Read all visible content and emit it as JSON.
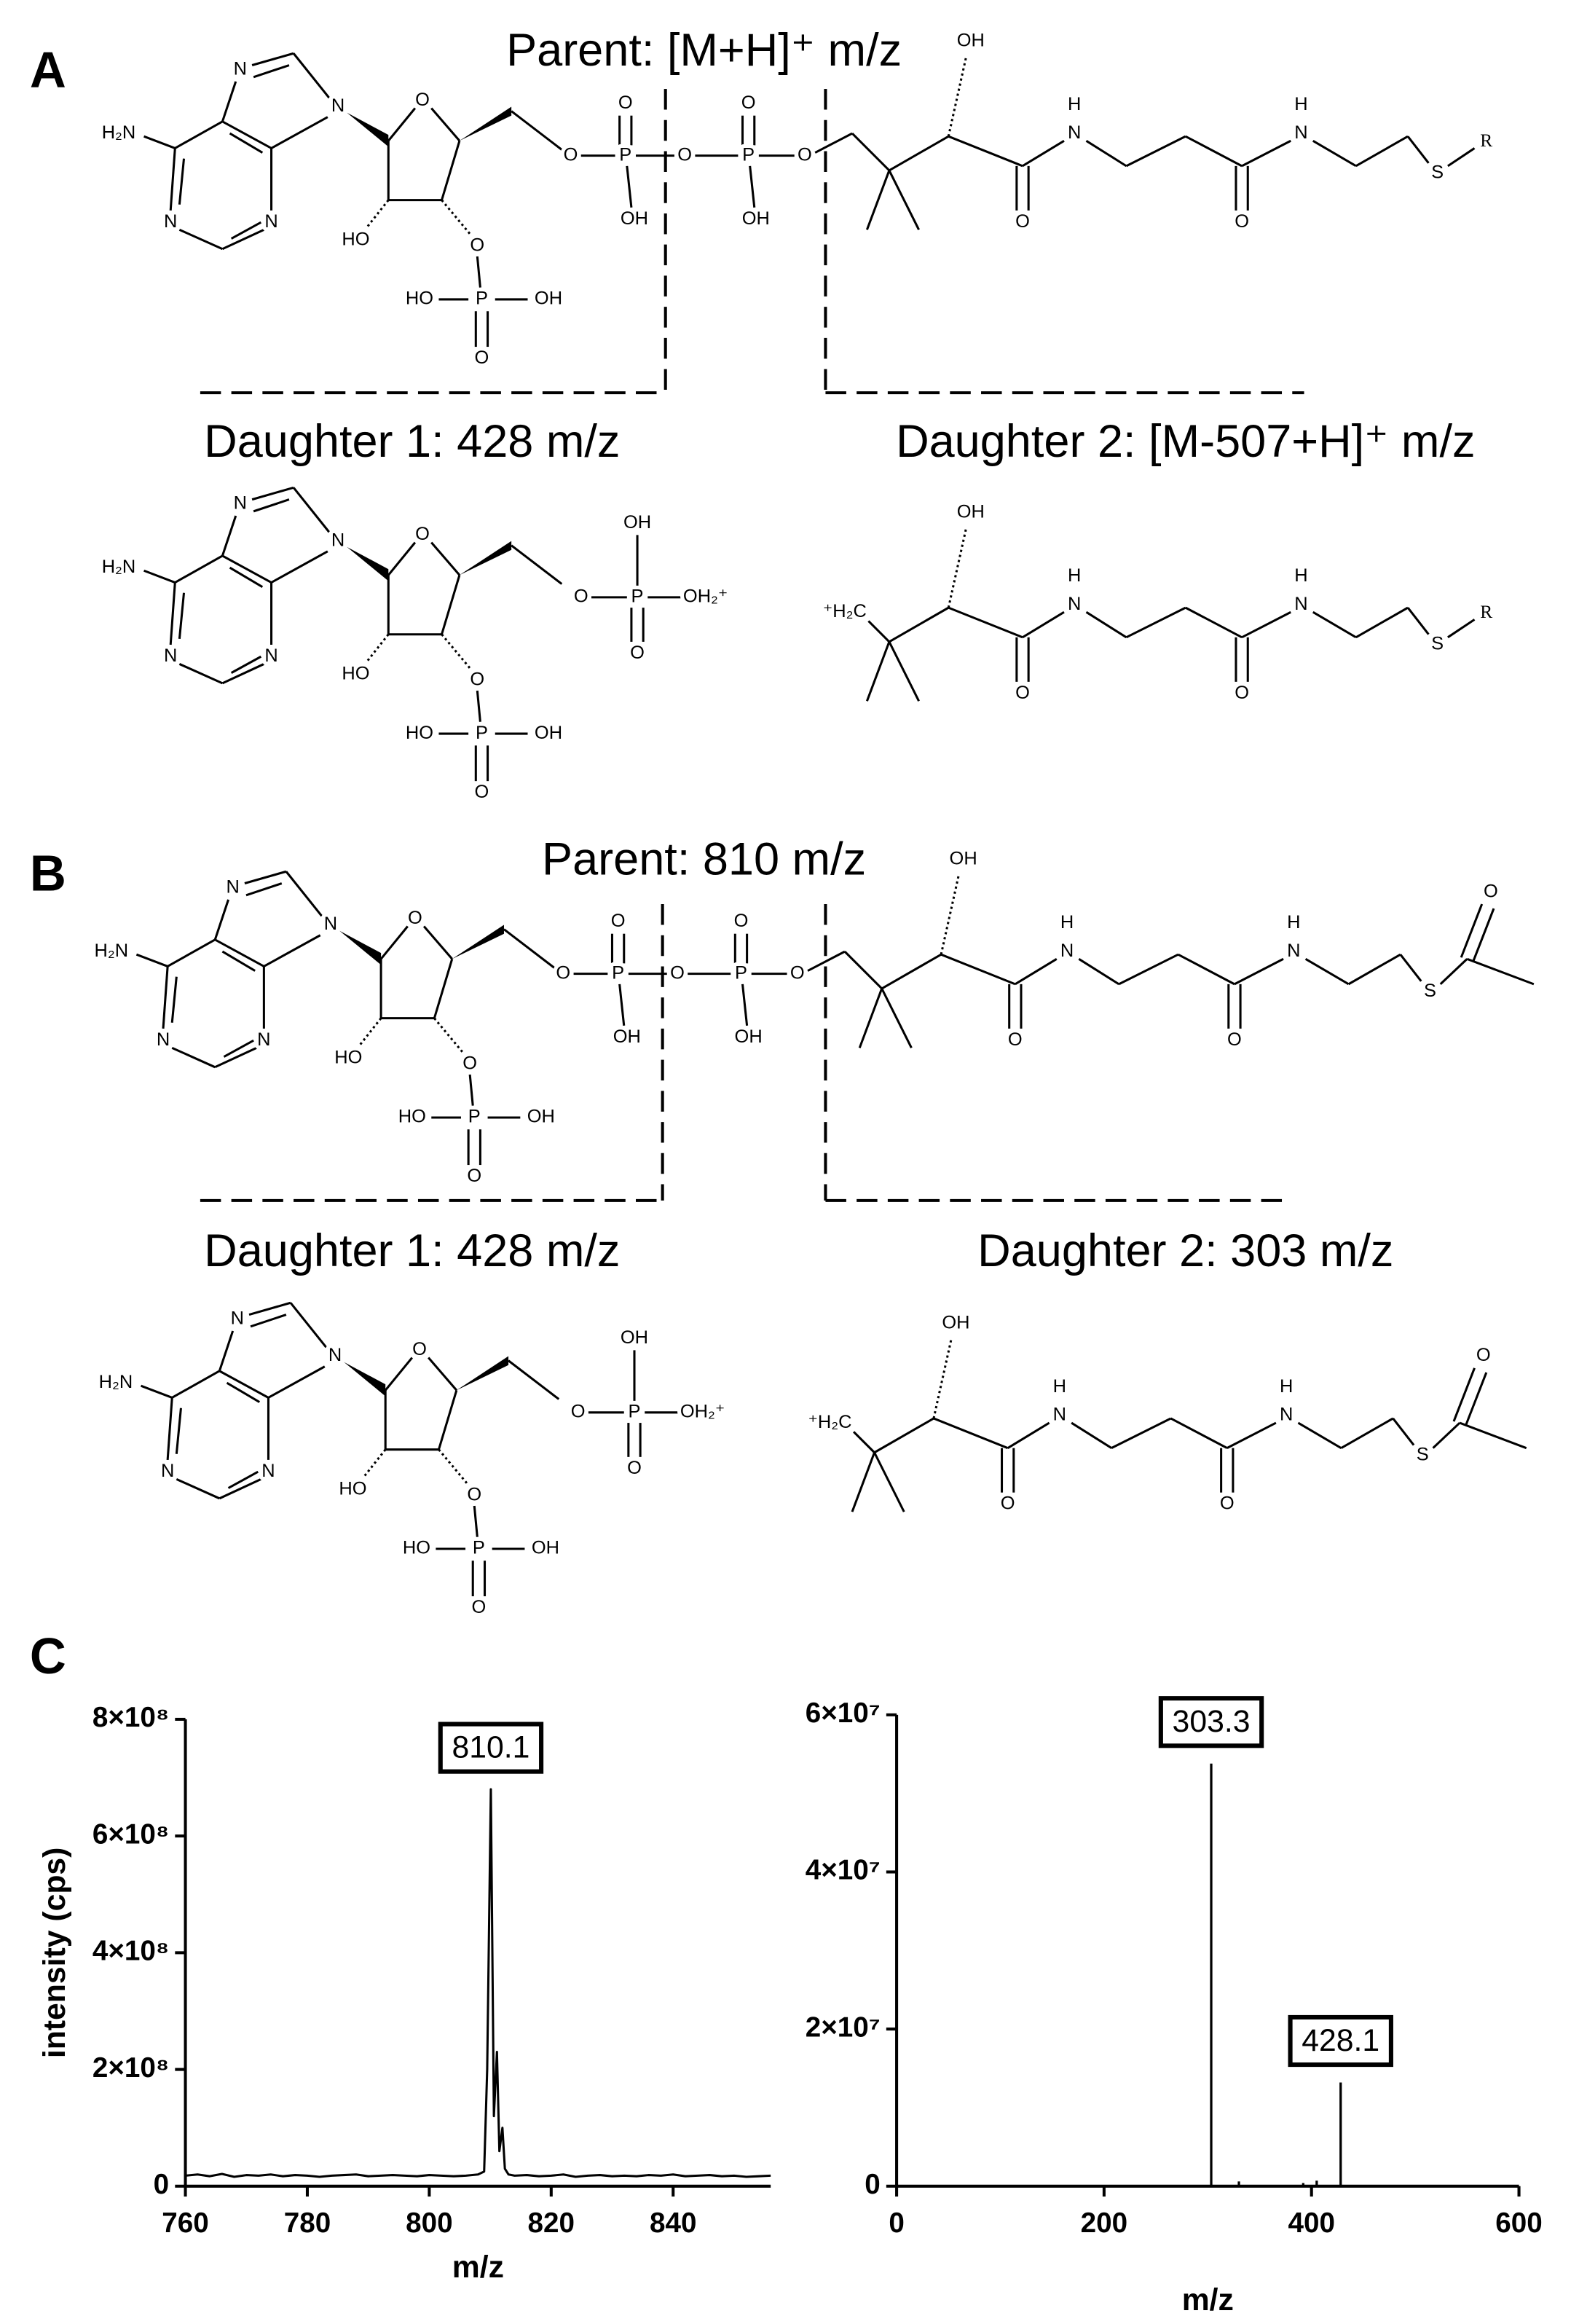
{
  "panels": [
    {
      "label": "A",
      "parent": {
        "title": "Parent: [M+H]⁺ m/z",
        "adenosine": [
          "H₂N",
          "N",
          "N",
          "N",
          "N",
          "O",
          "HO",
          "O",
          "P",
          "HO",
          "OH",
          "O"
        ],
        "phosphates": [
          "O",
          "P",
          "O",
          "OH",
          "O",
          "P",
          "O",
          "OH",
          "O"
        ],
        "chain": [
          "OH",
          "O",
          "N",
          "H",
          "O",
          "N",
          "H",
          "S"
        ],
        "r_group": "R"
      },
      "daughters": [
        {
          "title": "Daughter 1: 428 m/z",
          "adenosine": [
            "H₂N",
            "N",
            "N",
            "N",
            "N",
            "O",
            "HO",
            "O",
            "P",
            "HO",
            "OH",
            "O"
          ],
          "phosphate": [
            "O",
            "P",
            "OH",
            "OH₂⁺",
            "O"
          ]
        },
        {
          "title": "Daughter 2: [M-507+H]⁺ m/z",
          "start": "⁺H₂C",
          "chain": [
            "OH",
            "O",
            "N",
            "H",
            "O",
            "N",
            "H",
            "S"
          ],
          "r_group": "R"
        }
      ]
    },
    {
      "label": "B",
      "parent": {
        "title": "Parent: 810 m/z",
        "adenosine": [
          "H₂N",
          "N",
          "N",
          "N",
          "N",
          "O",
          "HO",
          "O",
          "P",
          "HO",
          "OH",
          "O"
        ],
        "phosphates": [
          "O",
          "P",
          "O",
          "OH",
          "O",
          "P",
          "O",
          "OH",
          "O"
        ],
        "chain": [
          "OH",
          "O",
          "N",
          "H",
          "O",
          "N",
          "H",
          "S"
        ],
        "acetyl": [
          "O"
        ]
      },
      "daughters": [
        {
          "title": "Daughter 1: 428 m/z",
          "adenosine": [
            "H₂N",
            "N",
            "N",
            "N",
            "N",
            "O",
            "HO",
            "O",
            "P",
            "HO",
            "OH",
            "O"
          ],
          "phosphate": [
            "O",
            "P",
            "OH",
            "OH₂⁺",
            "O"
          ]
        },
        {
          "title": "Daughter 2: 303 m/z",
          "start": "⁺H₂C",
          "chain": [
            "OH",
            "O",
            "N",
            "H",
            "O",
            "N",
            "H",
            "S"
          ],
          "acetyl": [
            "O"
          ]
        }
      ]
    }
  ],
  "panel_c": {
    "label": "C"
  },
  "chart_data": [
    {
      "type": "line",
      "ylabel": "intensity  (cps)",
      "xlabel": "m/z",
      "xlim": [
        760,
        856
      ],
      "xticks": [
        760,
        780,
        800,
        820,
        840
      ],
      "ylim": [
        0,
        800000000
      ],
      "yticks": [
        0,
        {
          "value": 200000000,
          "label": "2×10⁸"
        },
        {
          "value": 400000000,
          "label": "4×10⁸"
        },
        {
          "value": 600000000,
          "label": "6×10⁸"
        },
        {
          "value": 800000000,
          "label": "8×10⁸"
        }
      ],
      "series": [
        {
          "color": "#000000",
          "x": [
            760,
            762,
            764,
            766,
            768,
            770,
            772,
            774,
            776,
            778,
            780,
            782,
            784,
            786,
            788,
            790,
            792,
            794,
            796,
            798,
            800,
            802,
            804,
            806,
            808,
            809,
            809.5,
            810.1,
            810.6,
            811.1,
            811.5,
            812,
            812.4,
            813,
            814,
            816,
            818,
            820,
            822,
            824,
            826,
            828,
            830,
            832,
            834,
            836,
            838,
            840,
            842,
            844,
            846,
            848,
            850,
            852,
            854,
            856
          ],
          "values": [
            18000000,
            20000000,
            17000000,
            21000000,
            16000000,
            19000000,
            18000000,
            20000000,
            17000000,
            19000000,
            18000000,
            16000000,
            18000000,
            19000000,
            20000000,
            17000000,
            18000000,
            19000000,
            18000000,
            17000000,
            19000000,
            18000000,
            17000000,
            18000000,
            20000000,
            25000000,
            200000000,
            680000000,
            120000000,
            230000000,
            60000000,
            100000000,
            30000000,
            20000000,
            18000000,
            19000000,
            17000000,
            18000000,
            20000000,
            16000000,
            18000000,
            19000000,
            17000000,
            18000000,
            17000000,
            19000000,
            18000000,
            20000000,
            17000000,
            18000000,
            19000000,
            17000000,
            18000000,
            16000000,
            17000000,
            18000000
          ]
        }
      ],
      "annotations": [
        {
          "text": "810.1",
          "x": 810.1
        }
      ]
    },
    {
      "type": "stem",
      "xlabel": "m/z",
      "xlim": [
        0,
        600
      ],
      "xticks": [
        0,
        200,
        400,
        600
      ],
      "ylim": [
        0,
        60000000
      ],
      "yticks": [
        0,
        {
          "value": 20000000,
          "label": "2×10⁷"
        },
        {
          "value": 40000000,
          "label": "4×10⁷"
        },
        {
          "value": 60000000,
          "label": "6×10⁷"
        }
      ],
      "series": [
        {
          "color": "#000000",
          "x": [
            303.3,
            330,
            392,
            405,
            428.1
          ],
          "values": [
            53800000,
            600000,
            400000,
            700000,
            13200000
          ]
        }
      ],
      "annotations": [
        {
          "text": "303.3",
          "x": 303.3
        },
        {
          "text": "428.1",
          "x": 428.1
        }
      ]
    }
  ]
}
